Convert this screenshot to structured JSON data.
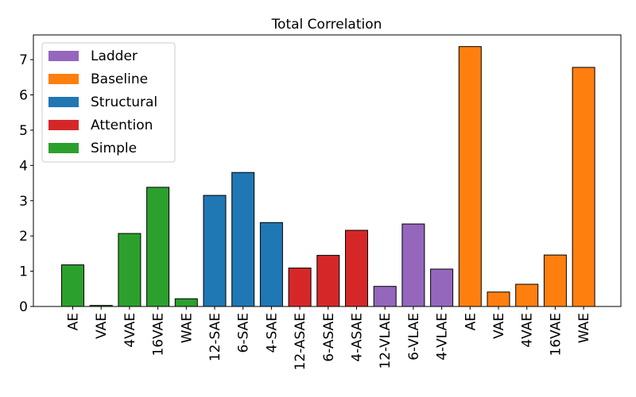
{
  "chart_data": {
    "type": "bar",
    "title": "Total Correlation",
    "xlabel": "",
    "ylabel": "",
    "ylim": [
      0,
      7.7
    ],
    "yticks": [
      0,
      1,
      2,
      3,
      4,
      5,
      6,
      7
    ],
    "grid": false,
    "legend_position": "top-left",
    "categories": [
      "AE",
      "VAE",
      "4VAE",
      "16VAE",
      "WAE",
      "12-SAE",
      "6-SAE",
      "4-SAE",
      "12-ASAE",
      "6-ASAE",
      "4-ASAE",
      "12-VLAE",
      "6-VLAE",
      "4-VLAE",
      "AE",
      "VAE",
      "4VAE",
      "16VAE",
      "WAE"
    ],
    "values": [
      1.18,
      0.03,
      2.07,
      3.38,
      0.22,
      3.15,
      3.8,
      2.38,
      1.09,
      1.45,
      2.16,
      0.57,
      2.34,
      1.06,
      7.37,
      0.41,
      0.63,
      1.46,
      6.78
    ],
    "groups": [
      "Simple",
      "Simple",
      "Simple",
      "Simple",
      "Simple",
      "Structural",
      "Structural",
      "Structural",
      "Attention",
      "Attention",
      "Attention",
      "Ladder",
      "Ladder",
      "Ladder",
      "Baseline",
      "Baseline",
      "Baseline",
      "Baseline",
      "Baseline"
    ],
    "legend": [
      {
        "name": "Ladder",
        "color": "#9467bd"
      },
      {
        "name": "Baseline",
        "color": "#ff7f0e"
      },
      {
        "name": "Structural",
        "color": "#1f77b4"
      },
      {
        "name": "Attention",
        "color": "#d62728"
      },
      {
        "name": "Simple",
        "color": "#2ca02c"
      }
    ]
  }
}
